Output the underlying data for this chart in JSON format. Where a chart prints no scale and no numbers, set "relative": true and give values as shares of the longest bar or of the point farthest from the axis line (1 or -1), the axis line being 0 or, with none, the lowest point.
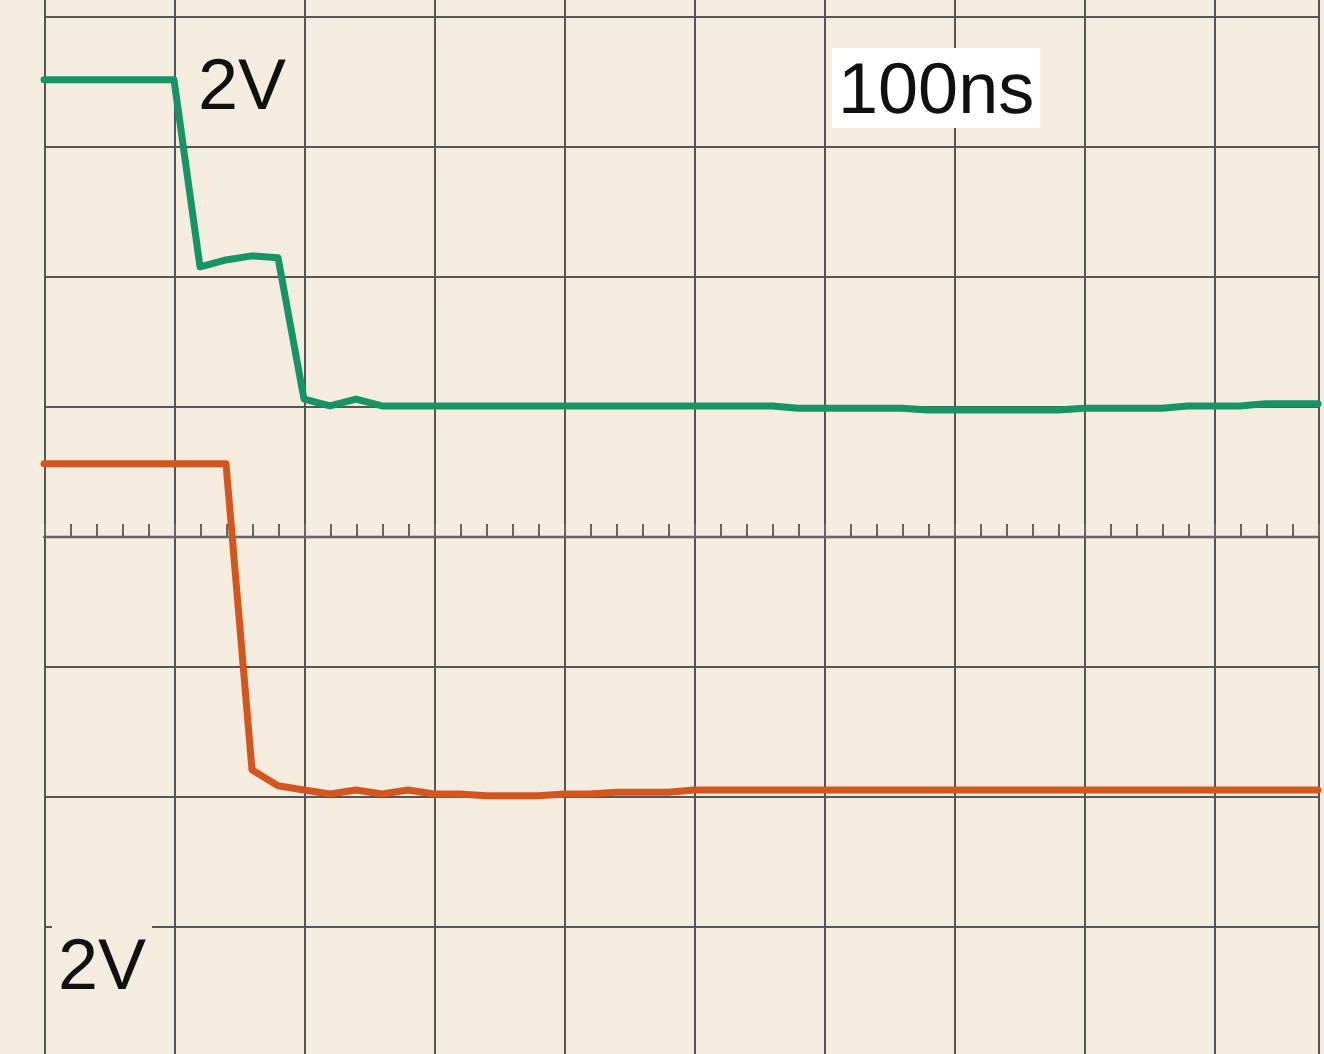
{
  "chart_data": {
    "type": "line",
    "relative": true,
    "grid": true,
    "marker": "none",
    "line_style": "solid",
    "categories": [
      null,
      null,
      null,
      null,
      null,
      null,
      null,
      null,
      null,
      null,
      null,
      null,
      null,
      null,
      null,
      null,
      null,
      null,
      null,
      null,
      null,
      null,
      null,
      null,
      null,
      null,
      null,
      null,
      null,
      null,
      null,
      null,
      null,
      null,
      null,
      null,
      null,
      null,
      null,
      null,
      null,
      null,
      null,
      null,
      null,
      null,
      null,
      null,
      null,
      null
    ],
    "series": [
      {
        "color": "#169466",
        "values": [
          1,
          1,
          1,
          1,
          1,
          1,
          0.59,
          0.605,
          0.614,
          0.61,
          0.3,
          0.285,
          0.3,
          0.285,
          0.285,
          0.285,
          0.285,
          0.285,
          0.285,
          0.285,
          0.285,
          0.285,
          0.285,
          0.285,
          0.285,
          0.285,
          0.285,
          0.285,
          0.285,
          0.28,
          0.28,
          0.28,
          0.28,
          0.28,
          0.276,
          0.276,
          0.276,
          0.276,
          0.276,
          0.276,
          0.28,
          0.28,
          0.28,
          0.28,
          0.285,
          0.285,
          0.285,
          0.29,
          0.29,
          0.29
        ]
      },
      {
        "color": "#d4561f",
        "values": [
          0.158,
          0.158,
          0.158,
          0.158,
          0.158,
          0.158,
          0.158,
          0.158,
          -0.513,
          -0.548,
          -0.557,
          -0.566,
          -0.557,
          -0.566,
          -0.557,
          -0.566,
          -0.566,
          -0.57,
          -0.57,
          -0.57,
          -0.566,
          -0.566,
          -0.562,
          -0.562,
          -0.562,
          -0.557,
          -0.557,
          -0.557,
          -0.557,
          -0.557,
          -0.557,
          -0.557,
          -0.557,
          -0.557,
          -0.557,
          -0.557,
          -0.557,
          -0.557,
          -0.557,
          -0.557,
          -0.557,
          -0.557,
          -0.557,
          -0.557,
          -0.557,
          -0.557,
          -0.557,
          -0.557,
          -0.557,
          -0.557
        ]
      }
    ],
    "annotations": [
      "2V",
      "100ns",
      "2V"
    ]
  }
}
